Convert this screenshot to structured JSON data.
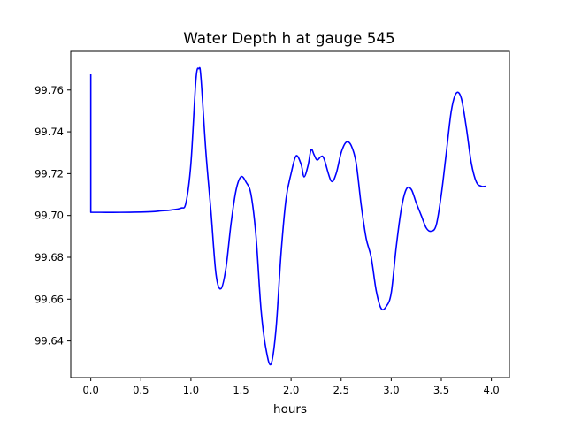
{
  "chart_data": {
    "type": "line",
    "title": "Water Depth h at gauge 545",
    "xlabel": "hours",
    "ylabel": "",
    "xlim": [
      -0.2,
      4.18
    ],
    "ylim": [
      99.6225,
      99.7785
    ],
    "x_ticks": [
      0.0,
      0.5,
      1.0,
      1.5,
      2.0,
      2.5,
      3.0,
      3.5,
      4.0
    ],
    "x_tick_labels": [
      "0.0",
      "0.5",
      "1.0",
      "1.5",
      "2.0",
      "2.5",
      "3.0",
      "3.5",
      "4.0"
    ],
    "y_ticks": [
      99.64,
      99.66,
      99.68,
      99.7,
      99.72,
      99.74,
      99.76
    ],
    "y_tick_labels": [
      "99.64",
      "99.66",
      "99.68",
      "99.70",
      "99.72",
      "99.74",
      "99.76"
    ],
    "grid": false,
    "series": [
      {
        "color": "#0000ff",
        "points": [
          [
            0.0,
            99.7675
          ],
          [
            0.0,
            99.7015
          ],
          [
            0.1,
            99.7015
          ],
          [
            0.3,
            99.7015
          ],
          [
            0.6,
            99.7018
          ],
          [
            0.7,
            99.7022
          ],
          [
            0.8,
            99.7026
          ],
          [
            0.9,
            99.7035
          ],
          [
            0.95,
            99.706
          ],
          [
            1.0,
            99.725
          ],
          [
            1.05,
            99.765
          ],
          [
            1.08,
            99.7702
          ],
          [
            1.1,
            99.766
          ],
          [
            1.15,
            99.73
          ],
          [
            1.2,
            99.702
          ],
          [
            1.25,
            99.672
          ],
          [
            1.3,
            99.665
          ],
          [
            1.35,
            99.675
          ],
          [
            1.4,
            99.696
          ],
          [
            1.45,
            99.712
          ],
          [
            1.5,
            99.7185
          ],
          [
            1.55,
            99.716
          ],
          [
            1.6,
            99.71
          ],
          [
            1.65,
            99.69
          ],
          [
            1.7,
            99.655
          ],
          [
            1.75,
            99.636
          ],
          [
            1.8,
            99.629
          ],
          [
            1.85,
            99.646
          ],
          [
            1.9,
            99.682
          ],
          [
            1.95,
            99.708
          ],
          [
            2.0,
            99.72
          ],
          [
            2.05,
            99.7285
          ],
          [
            2.1,
            99.7245
          ],
          [
            2.13,
            99.7185
          ],
          [
            2.17,
            99.724
          ],
          [
            2.2,
            99.7315
          ],
          [
            2.23,
            99.729
          ],
          [
            2.26,
            99.7265
          ],
          [
            2.3,
            99.7282
          ],
          [
            2.33,
            99.727
          ],
          [
            2.4,
            99.7165
          ],
          [
            2.45,
            99.72
          ],
          [
            2.5,
            99.73
          ],
          [
            2.55,
            99.735
          ],
          [
            2.6,
            99.7335
          ],
          [
            2.65,
            99.725
          ],
          [
            2.7,
            99.705
          ],
          [
            2.75,
            99.689
          ],
          [
            2.8,
            99.68
          ],
          [
            2.85,
            99.664
          ],
          [
            2.9,
            99.6555
          ],
          [
            2.95,
            99.6565
          ],
          [
            3.0,
            99.663
          ],
          [
            3.05,
            99.685
          ],
          [
            3.1,
            99.703
          ],
          [
            3.15,
            99.7125
          ],
          [
            3.2,
            99.7125
          ],
          [
            3.25,
            99.706
          ],
          [
            3.3,
            99.7
          ],
          [
            3.35,
            99.694
          ],
          [
            3.4,
            99.6925
          ],
          [
            3.45,
            99.6955
          ],
          [
            3.5,
            99.71
          ],
          [
            3.55,
            99.73
          ],
          [
            3.6,
            99.75
          ],
          [
            3.65,
            99.7585
          ],
          [
            3.7,
            99.756
          ],
          [
            3.75,
            99.742
          ],
          [
            3.8,
            99.725
          ],
          [
            3.85,
            99.716
          ],
          [
            3.9,
            99.714
          ],
          [
            3.95,
            99.714
          ]
        ]
      }
    ]
  }
}
